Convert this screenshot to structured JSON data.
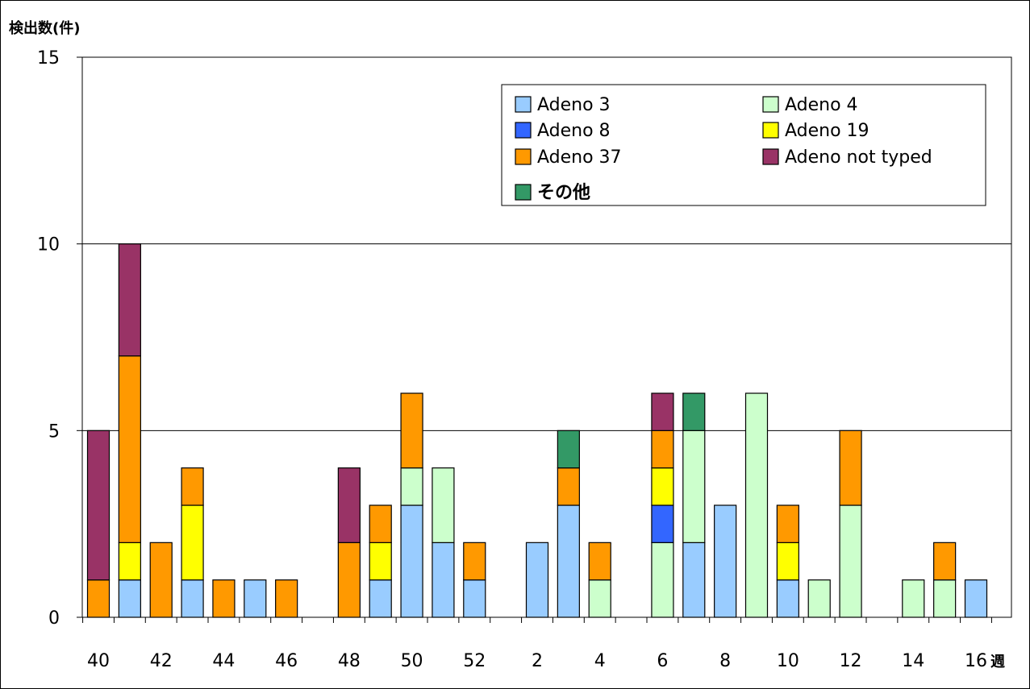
{
  "chart_data": {
    "type": "bar",
    "stacked": true,
    "title": "",
    "ylabel": "検出数(件)",
    "xlabel": "週",
    "ylim": [
      0,
      15
    ],
    "yticks": [
      0,
      5,
      10,
      15
    ],
    "grid": true,
    "legend_position": "top-right",
    "categories": [
      "40",
      "41",
      "42",
      "43",
      "44",
      "45",
      "46",
      "47",
      "48",
      "49",
      "50",
      "51",
      "52",
      "1",
      "2",
      "3",
      "4",
      "5",
      "6",
      "7",
      "8",
      "9",
      "10",
      "11",
      "12",
      "13",
      "14",
      "15",
      "16"
    ],
    "x_tick_labels": [
      "40",
      "",
      "42",
      "",
      "44",
      "",
      "46",
      "",
      "48",
      "",
      "50",
      "",
      "52",
      "",
      "2",
      "",
      "4",
      "",
      "6",
      "",
      "8",
      "",
      "10",
      "",
      "12",
      "",
      "14",
      "",
      "16"
    ],
    "series": [
      {
        "name": "Adeno 3",
        "color": "#99CCFF",
        "values": [
          0,
          1,
          0,
          1,
          0,
          1,
          0,
          0,
          0,
          1,
          3,
          2,
          1,
          0,
          2,
          3,
          0,
          0,
          0,
          2,
          3,
          0,
          1,
          0,
          0,
          0,
          0,
          0,
          1
        ]
      },
      {
        "name": "Adeno 4",
        "color": "#CCFFCC",
        "values": [
          0,
          0,
          0,
          0,
          0,
          0,
          0,
          0,
          0,
          0,
          1,
          2,
          0,
          0,
          0,
          0,
          1,
          0,
          2,
          3,
          0,
          6,
          0,
          1,
          3,
          0,
          1,
          1,
          0
        ]
      },
      {
        "name": "Adeno 8",
        "color": "#3366FF",
        "values": [
          0,
          0,
          0,
          0,
          0,
          0,
          0,
          0,
          0,
          0,
          0,
          0,
          0,
          0,
          0,
          0,
          0,
          0,
          1,
          0,
          0,
          0,
          0,
          0,
          0,
          0,
          0,
          0,
          0
        ]
      },
      {
        "name": "Adeno 19",
        "color": "#FFFF00",
        "values": [
          0,
          1,
          0,
          2,
          0,
          0,
          0,
          0,
          0,
          1,
          0,
          0,
          0,
          0,
          0,
          0,
          0,
          0,
          1,
          0,
          0,
          0,
          1,
          0,
          0,
          0,
          0,
          0,
          0
        ]
      },
      {
        "name": "Adeno 37",
        "color": "#FF9900",
        "values": [
          1,
          5,
          2,
          1,
          1,
          0,
          1,
          0,
          2,
          1,
          2,
          0,
          1,
          0,
          0,
          1,
          1,
          0,
          1,
          0,
          0,
          0,
          1,
          0,
          2,
          0,
          0,
          1,
          0
        ]
      },
      {
        "name": "Adeno not typed",
        "color": "#993366",
        "values": [
          4,
          3,
          0,
          0,
          0,
          0,
          0,
          0,
          2,
          0,
          0,
          0,
          0,
          0,
          0,
          0,
          0,
          0,
          1,
          0,
          0,
          0,
          0,
          0,
          0,
          0,
          0,
          0,
          0
        ]
      },
      {
        "name": "その他",
        "color": "#339966",
        "values": [
          0,
          0,
          0,
          0,
          0,
          0,
          0,
          0,
          0,
          0,
          0,
          0,
          0,
          0,
          0,
          1,
          0,
          0,
          0,
          1,
          0,
          0,
          0,
          0,
          0,
          0,
          0,
          0,
          0
        ]
      }
    ]
  }
}
